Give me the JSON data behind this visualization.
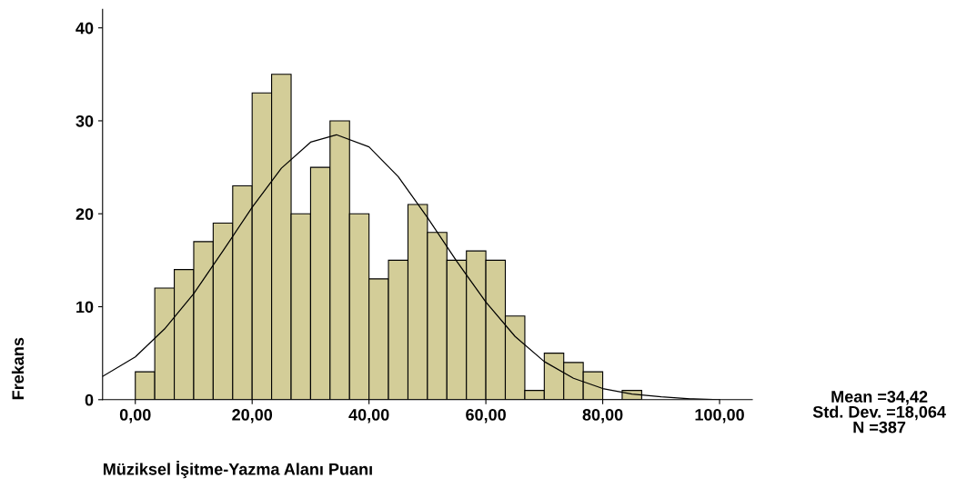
{
  "chart_data": {
    "type": "histogram",
    "xlabel": "Müziksel İşitme-Yazma Alanı Puanı",
    "ylabel": "Frekans",
    "bins": [
      0,
      3.33,
      6.67,
      10,
      13.33,
      16.67,
      20,
      23.33,
      26.67,
      30,
      33.33,
      36.67,
      40,
      43.33,
      46.67,
      50,
      53.33,
      56.67,
      60,
      63.33,
      66.67,
      70,
      73.33,
      76.67,
      80,
      83.33,
      86.67
    ],
    "values": [
      3,
      12,
      14,
      17,
      19,
      23,
      33,
      35,
      20,
      25,
      30,
      20,
      13,
      15,
      21,
      18,
      15,
      16,
      15,
      9,
      1,
      5,
      4,
      3,
      0,
      1
    ],
    "color": "#d3cd98",
    "series": [
      {
        "type": "line",
        "color": "#000000",
        "x": [
          -5.6,
          0,
          5,
          10,
          15,
          20,
          25,
          30,
          34.42,
          40,
          45,
          50,
          55,
          60,
          65,
          70,
          75,
          80,
          85,
          90,
          95,
          100
        ],
        "values": [
          2.5,
          4.6,
          7.6,
          11.4,
          16,
          20.7,
          24.9,
          27.7,
          28.5,
          27.2,
          24,
          19.6,
          14.9,
          10.5,
          6.8,
          4.1,
          2.3,
          1.2,
          0.6,
          0.3,
          0.1,
          0
        ]
      }
    ],
    "xlim": [
      -5.6,
      105.6
    ],
    "ylim": [
      0,
      42
    ],
    "xticks": [
      {
        "value": 0,
        "label": "0,00"
      },
      {
        "value": 20,
        "label": "20,00"
      },
      {
        "value": 40,
        "label": "40,00"
      },
      {
        "value": 60,
        "label": "60,00"
      },
      {
        "value": 80,
        "label": "80,00"
      },
      {
        "value": 100,
        "label": "100,00"
      }
    ],
    "yticks": [
      0,
      10,
      20,
      30,
      40
    ],
    "grid": false,
    "annotations": [
      "Mean =34,42\nStd. Dev. =18,064\nN =387"
    ]
  }
}
